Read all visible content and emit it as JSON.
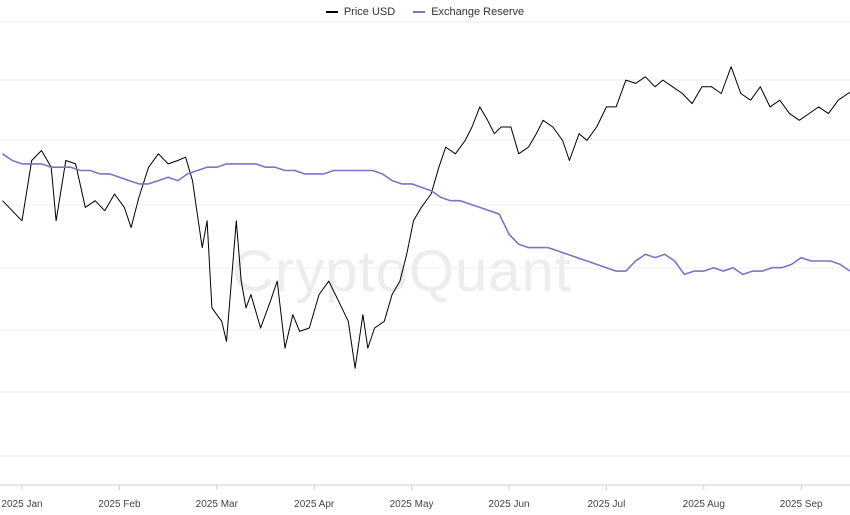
{
  "watermark": "CryptoQuant",
  "chart_data": {
    "type": "line",
    "x_ticks": [
      "2025 Jan",
      "2025 Feb",
      "2025 Mar",
      "2025 Apr",
      "2025 May",
      "2025 Jun",
      "2025 Jul",
      "2025 Aug",
      "2025 Sep"
    ],
    "grid": "horizontal",
    "legend": "top-center",
    "series": [
      {
        "name": "Price USD",
        "color": "#000000",
        "points": [
          [
            -0.2,
            0.58
          ],
          [
            0.0,
            0.52
          ],
          [
            0.1,
            0.7
          ],
          [
            0.2,
            0.73
          ],
          [
            0.3,
            0.68
          ],
          [
            0.35,
            0.52
          ],
          [
            0.45,
            0.7
          ],
          [
            0.55,
            0.69
          ],
          [
            0.65,
            0.56
          ],
          [
            0.75,
            0.58
          ],
          [
            0.85,
            0.55
          ],
          [
            0.95,
            0.6
          ],
          [
            1.05,
            0.56
          ],
          [
            1.12,
            0.5
          ],
          [
            1.2,
            0.59
          ],
          [
            1.3,
            0.68
          ],
          [
            1.4,
            0.72
          ],
          [
            1.5,
            0.69
          ],
          [
            1.6,
            0.7
          ],
          [
            1.68,
            0.71
          ],
          [
            1.75,
            0.64
          ],
          [
            1.8,
            0.54
          ],
          [
            1.85,
            0.44
          ],
          [
            1.9,
            0.52
          ],
          [
            1.95,
            0.26
          ],
          [
            2.05,
            0.22
          ],
          [
            2.1,
            0.16
          ],
          [
            2.2,
            0.52
          ],
          [
            2.25,
            0.34
          ],
          [
            2.3,
            0.26
          ],
          [
            2.35,
            0.3
          ],
          [
            2.45,
            0.2
          ],
          [
            2.55,
            0.28
          ],
          [
            2.62,
            0.34
          ],
          [
            2.7,
            0.14
          ],
          [
            2.78,
            0.24
          ],
          [
            2.85,
            0.19
          ],
          [
            2.95,
            0.2
          ],
          [
            3.05,
            0.3
          ],
          [
            3.15,
            0.34
          ],
          [
            3.25,
            0.28
          ],
          [
            3.35,
            0.22
          ],
          [
            3.42,
            0.08
          ],
          [
            3.5,
            0.24
          ],
          [
            3.55,
            0.14
          ],
          [
            3.62,
            0.2
          ],
          [
            3.72,
            0.22
          ],
          [
            3.8,
            0.3
          ],
          [
            3.88,
            0.34
          ],
          [
            3.95,
            0.42
          ],
          [
            4.02,
            0.52
          ],
          [
            4.1,
            0.56
          ],
          [
            4.2,
            0.6
          ],
          [
            4.28,
            0.68
          ],
          [
            4.35,
            0.74
          ],
          [
            4.45,
            0.72
          ],
          [
            4.55,
            0.76
          ],
          [
            4.62,
            0.8
          ],
          [
            4.7,
            0.86
          ],
          [
            4.78,
            0.82
          ],
          [
            4.85,
            0.78
          ],
          [
            4.92,
            0.8
          ],
          [
            5.02,
            0.8
          ],
          [
            5.1,
            0.72
          ],
          [
            5.2,
            0.74
          ],
          [
            5.28,
            0.78
          ],
          [
            5.35,
            0.82
          ],
          [
            5.45,
            0.8
          ],
          [
            5.55,
            0.76
          ],
          [
            5.62,
            0.7
          ],
          [
            5.72,
            0.78
          ],
          [
            5.8,
            0.76
          ],
          [
            5.9,
            0.8
          ],
          [
            6.0,
            0.86
          ],
          [
            6.1,
            0.86
          ],
          [
            6.2,
            0.94
          ],
          [
            6.3,
            0.93
          ],
          [
            6.4,
            0.95
          ],
          [
            6.5,
            0.92
          ],
          [
            6.58,
            0.94
          ],
          [
            6.68,
            0.92
          ],
          [
            6.78,
            0.9
          ],
          [
            6.88,
            0.87
          ],
          [
            6.98,
            0.92
          ],
          [
            7.08,
            0.92
          ],
          [
            7.18,
            0.9
          ],
          [
            7.28,
            0.98
          ],
          [
            7.38,
            0.9
          ],
          [
            7.48,
            0.88
          ],
          [
            7.58,
            0.92
          ],
          [
            7.68,
            0.86
          ],
          [
            7.78,
            0.88
          ],
          [
            7.88,
            0.84
          ],
          [
            7.98,
            0.82
          ],
          [
            8.08,
            0.84
          ],
          [
            8.18,
            0.86
          ],
          [
            8.28,
            0.84
          ],
          [
            8.38,
            0.88
          ],
          [
            8.48,
            0.9
          ],
          [
            8.55,
            0.91
          ]
        ]
      },
      {
        "name": "Exchange Reserve",
        "color": "#7b73c7",
        "points": [
          [
            -0.2,
            0.72
          ],
          [
            -0.1,
            0.7
          ],
          [
            0.0,
            0.69
          ],
          [
            0.1,
            0.69
          ],
          [
            0.2,
            0.69
          ],
          [
            0.3,
            0.68
          ],
          [
            0.4,
            0.68
          ],
          [
            0.5,
            0.68
          ],
          [
            0.6,
            0.67
          ],
          [
            0.7,
            0.67
          ],
          [
            0.8,
            0.66
          ],
          [
            0.9,
            0.66
          ],
          [
            1.0,
            0.65
          ],
          [
            1.1,
            0.64
          ],
          [
            1.2,
            0.63
          ],
          [
            1.3,
            0.63
          ],
          [
            1.4,
            0.64
          ],
          [
            1.5,
            0.65
          ],
          [
            1.6,
            0.64
          ],
          [
            1.7,
            0.66
          ],
          [
            1.8,
            0.67
          ],
          [
            1.9,
            0.68
          ],
          [
            2.0,
            0.68
          ],
          [
            2.1,
            0.69
          ],
          [
            2.2,
            0.69
          ],
          [
            2.3,
            0.69
          ],
          [
            2.4,
            0.69
          ],
          [
            2.5,
            0.68
          ],
          [
            2.6,
            0.68
          ],
          [
            2.7,
            0.67
          ],
          [
            2.8,
            0.67
          ],
          [
            2.9,
            0.66
          ],
          [
            3.0,
            0.66
          ],
          [
            3.1,
            0.66
          ],
          [
            3.2,
            0.67
          ],
          [
            3.3,
            0.67
          ],
          [
            3.4,
            0.67
          ],
          [
            3.5,
            0.67
          ],
          [
            3.6,
            0.67
          ],
          [
            3.7,
            0.66
          ],
          [
            3.8,
            0.64
          ],
          [
            3.9,
            0.63
          ],
          [
            4.0,
            0.63
          ],
          [
            4.1,
            0.62
          ],
          [
            4.2,
            0.61
          ],
          [
            4.3,
            0.59
          ],
          [
            4.4,
            0.58
          ],
          [
            4.5,
            0.58
          ],
          [
            4.6,
            0.57
          ],
          [
            4.7,
            0.56
          ],
          [
            4.8,
            0.55
          ],
          [
            4.9,
            0.54
          ],
          [
            5.0,
            0.48
          ],
          [
            5.1,
            0.45
          ],
          [
            5.2,
            0.44
          ],
          [
            5.3,
            0.44
          ],
          [
            5.4,
            0.44
          ],
          [
            5.5,
            0.43
          ],
          [
            5.6,
            0.42
          ],
          [
            5.7,
            0.41
          ],
          [
            5.8,
            0.4
          ],
          [
            5.9,
            0.39
          ],
          [
            6.0,
            0.38
          ],
          [
            6.1,
            0.37
          ],
          [
            6.2,
            0.37
          ],
          [
            6.3,
            0.4
          ],
          [
            6.4,
            0.42
          ],
          [
            6.5,
            0.41
          ],
          [
            6.6,
            0.42
          ],
          [
            6.7,
            0.4
          ],
          [
            6.8,
            0.36
          ],
          [
            6.9,
            0.37
          ],
          [
            7.0,
            0.37
          ],
          [
            7.1,
            0.38
          ],
          [
            7.2,
            0.37
          ],
          [
            7.3,
            0.38
          ],
          [
            7.4,
            0.36
          ],
          [
            7.5,
            0.37
          ],
          [
            7.6,
            0.37
          ],
          [
            7.7,
            0.38
          ],
          [
            7.8,
            0.38
          ],
          [
            7.9,
            0.39
          ],
          [
            8.0,
            0.41
          ],
          [
            8.1,
            0.4
          ],
          [
            8.2,
            0.4
          ],
          [
            8.3,
            0.4
          ],
          [
            8.4,
            0.39
          ],
          [
            8.5,
            0.37
          ]
        ]
      }
    ]
  }
}
